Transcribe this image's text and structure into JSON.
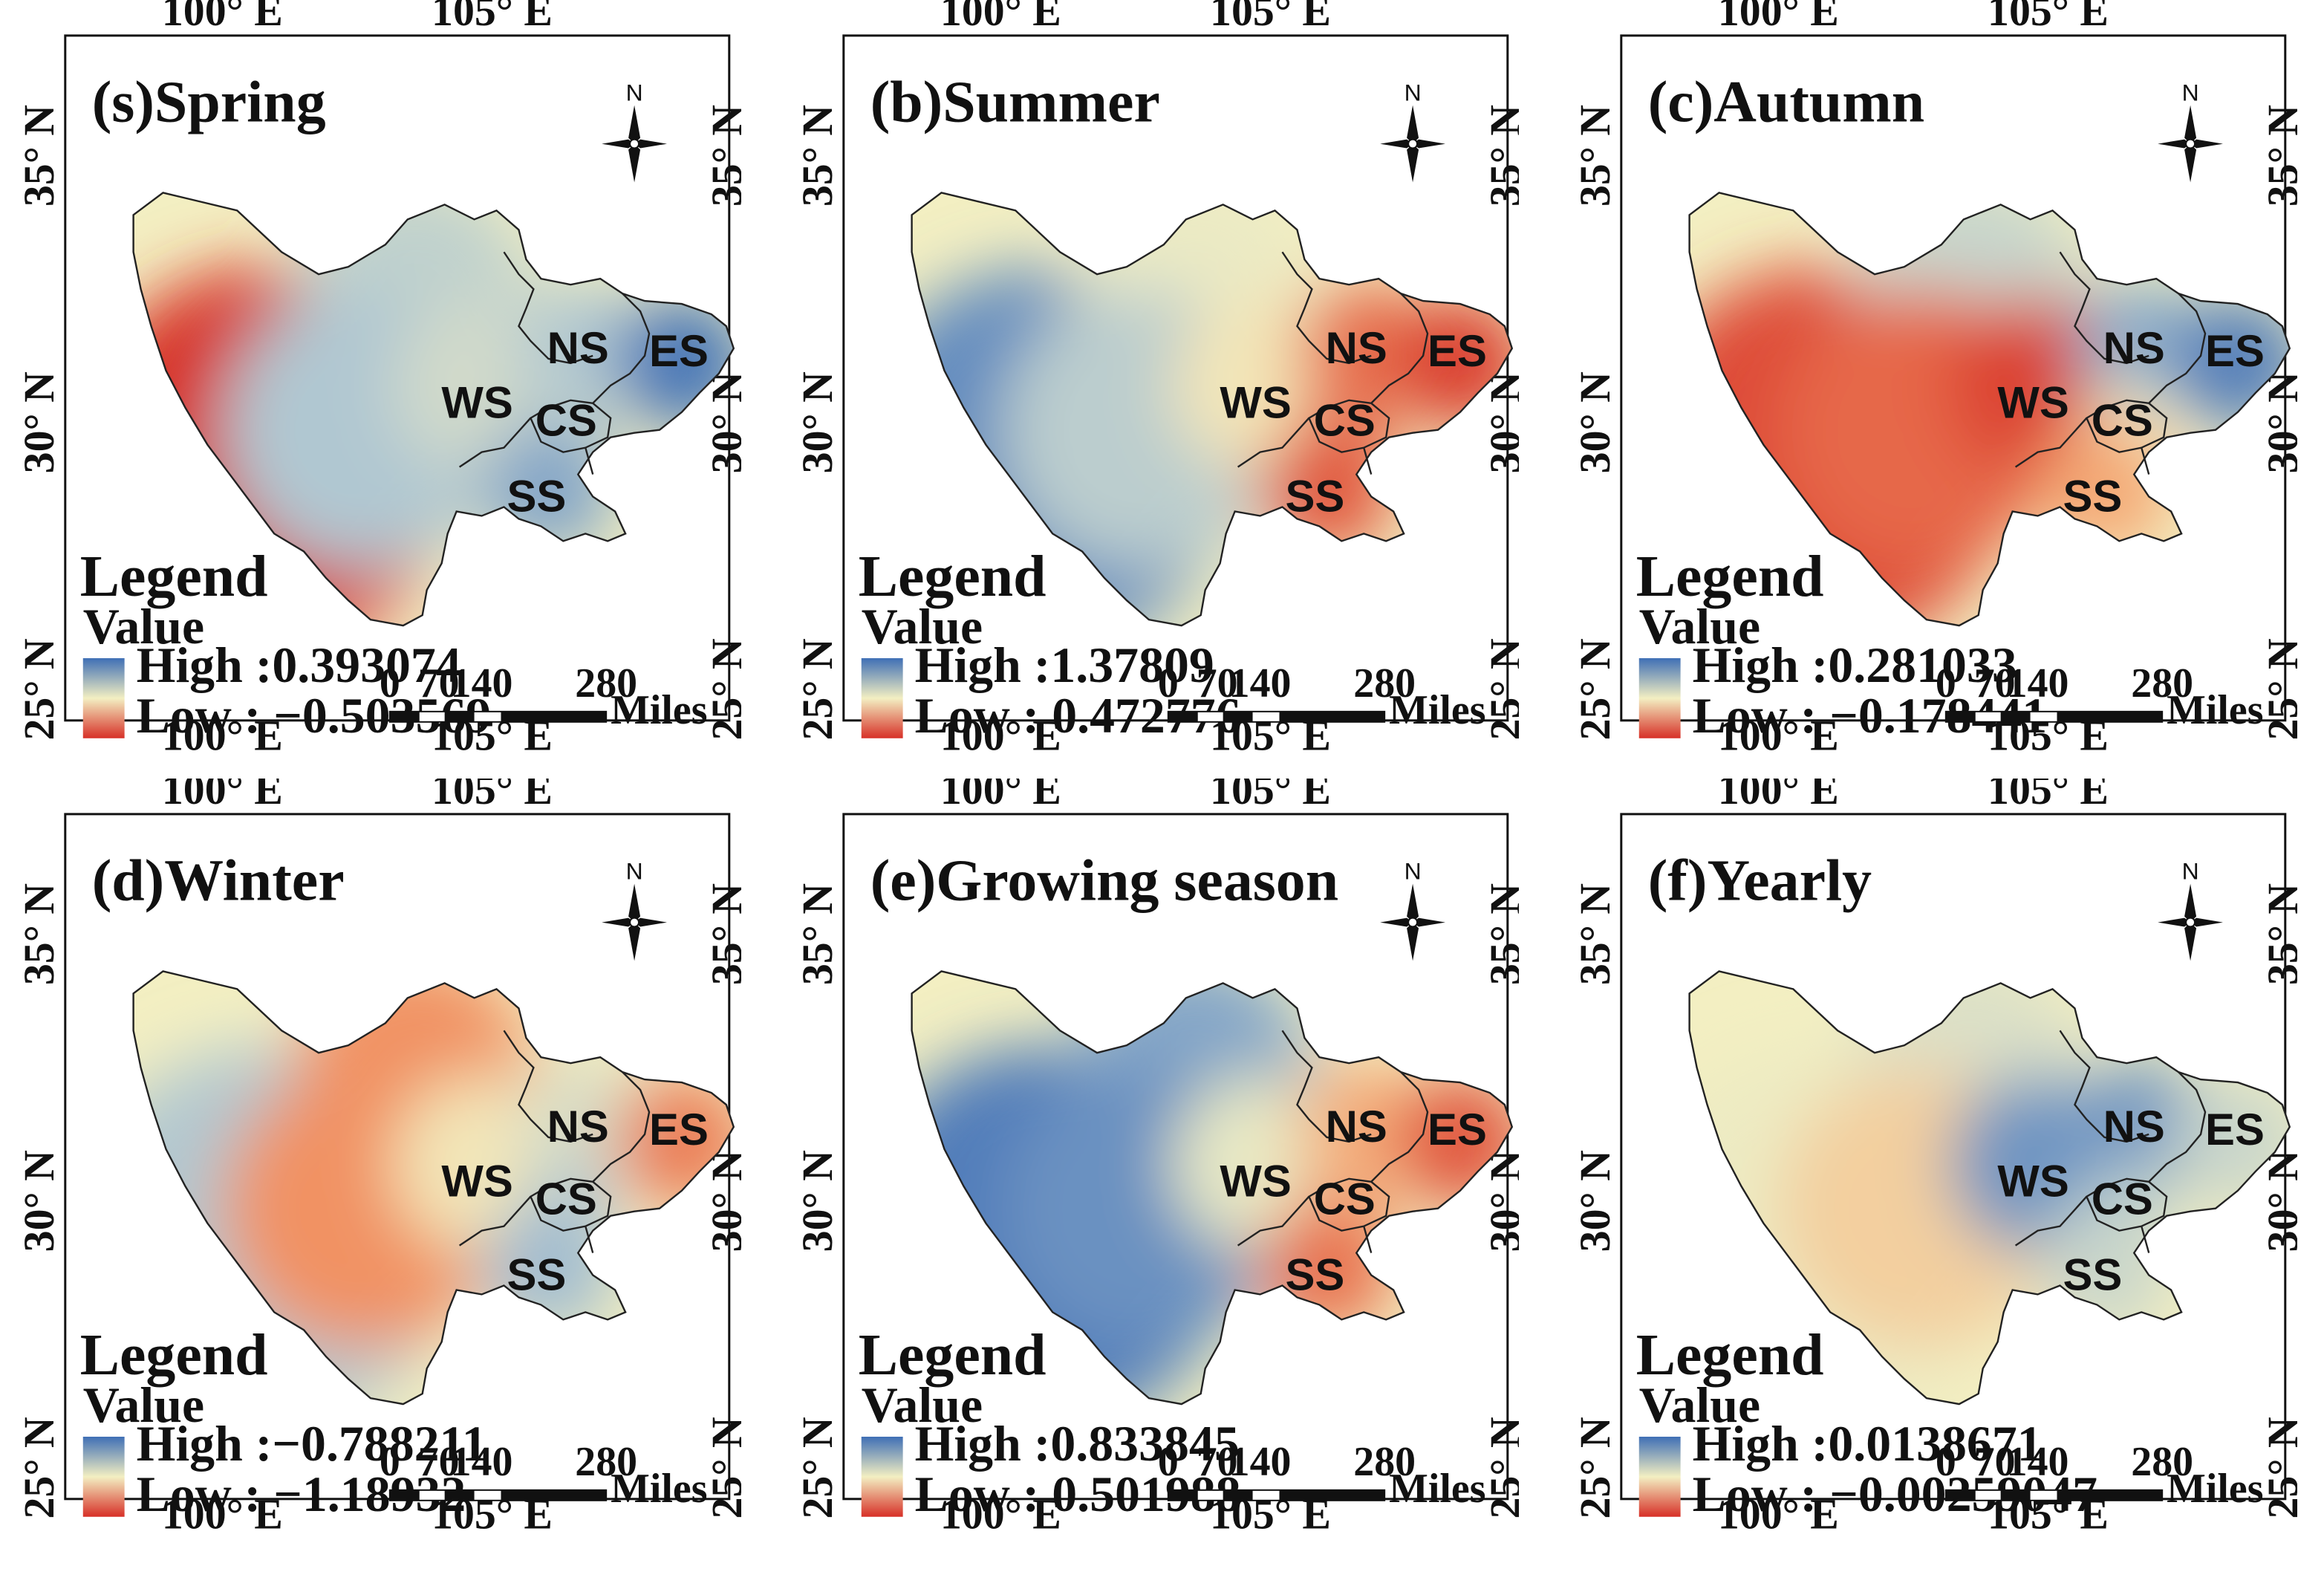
{
  "axes": {
    "lon_labels": [
      "100° E",
      "105° E"
    ],
    "lat_labels": [
      "35° N",
      "30° N",
      "25° N"
    ]
  },
  "legend": {
    "heading": "Legend",
    "subheading": "Value",
    "high_prefix": "High :",
    "low_prefix": "Low :"
  },
  "scale_bar": {
    "ticks": [
      "0",
      "70",
      "140",
      "280"
    ],
    "unit": "Miles"
  },
  "compass": {
    "north_label": "N"
  },
  "regions": [
    "NS",
    "ES",
    "WS",
    "CS",
    "SS"
  ],
  "colors": {
    "high": "#3f6fb5",
    "mid": "#f3efc2",
    "low": "#d93a2f"
  },
  "panels": [
    {
      "title": "(s)Spring",
      "high": "0.393074",
      "low": "−0.503569",
      "values": {
        "west": -0.5,
        "north": 0.1,
        "center": 0.15,
        "WS": 0.05,
        "NS": 0.15,
        "ES": 0.38,
        "CS": 0.1,
        "SS": 0.25
      }
    },
    {
      "title": "(b)Summer",
      "high": "1.37809",
      "low": "0.472776",
      "values": {
        "west": 1.3,
        "north": 0.95,
        "center": 1.1,
        "WS": 0.9,
        "NS": 0.6,
        "ES": 0.5,
        "CS": 0.6,
        "SS": 0.55
      }
    },
    {
      "title": "(c)Autumn",
      "high": "0.281033",
      "low": "−0.178441",
      "values": {
        "west": -0.15,
        "north": 0.12,
        "center": -0.12,
        "WS": -0.16,
        "NS": 0.2,
        "ES": 0.26,
        "CS": 0.05,
        "SS": -0.05
      }
    },
    {
      "title": "(d)Winter",
      "high": "−0.788211",
      "low": "−1.18932",
      "values": {
        "west": -0.9,
        "north": -1.1,
        "center": -1.1,
        "WS": -1.0,
        "NS": -0.95,
        "ES": -1.12,
        "CS": -0.9,
        "SS": -0.88
      }
    },
    {
      "title": "(e)Growing season",
      "high": "0.833845",
      "low": "0.501988",
      "values": {
        "west": 0.82,
        "north": 0.78,
        "center": 0.8,
        "WS": 0.68,
        "NS": 0.6,
        "ES": 0.53,
        "CS": 0.6,
        "SS": 0.55
      }
    },
    {
      "title": "(f)Yearly",
      "high": "0.0138671",
      "low": "−0.00259047",
      "values": {
        "west": 0.006,
        "north": 0.007,
        "center": 0.004,
        "WS": 0.012,
        "NS": 0.012,
        "ES": 0.008,
        "CS": 0.009,
        "SS": 0.008
      }
    }
  ]
}
